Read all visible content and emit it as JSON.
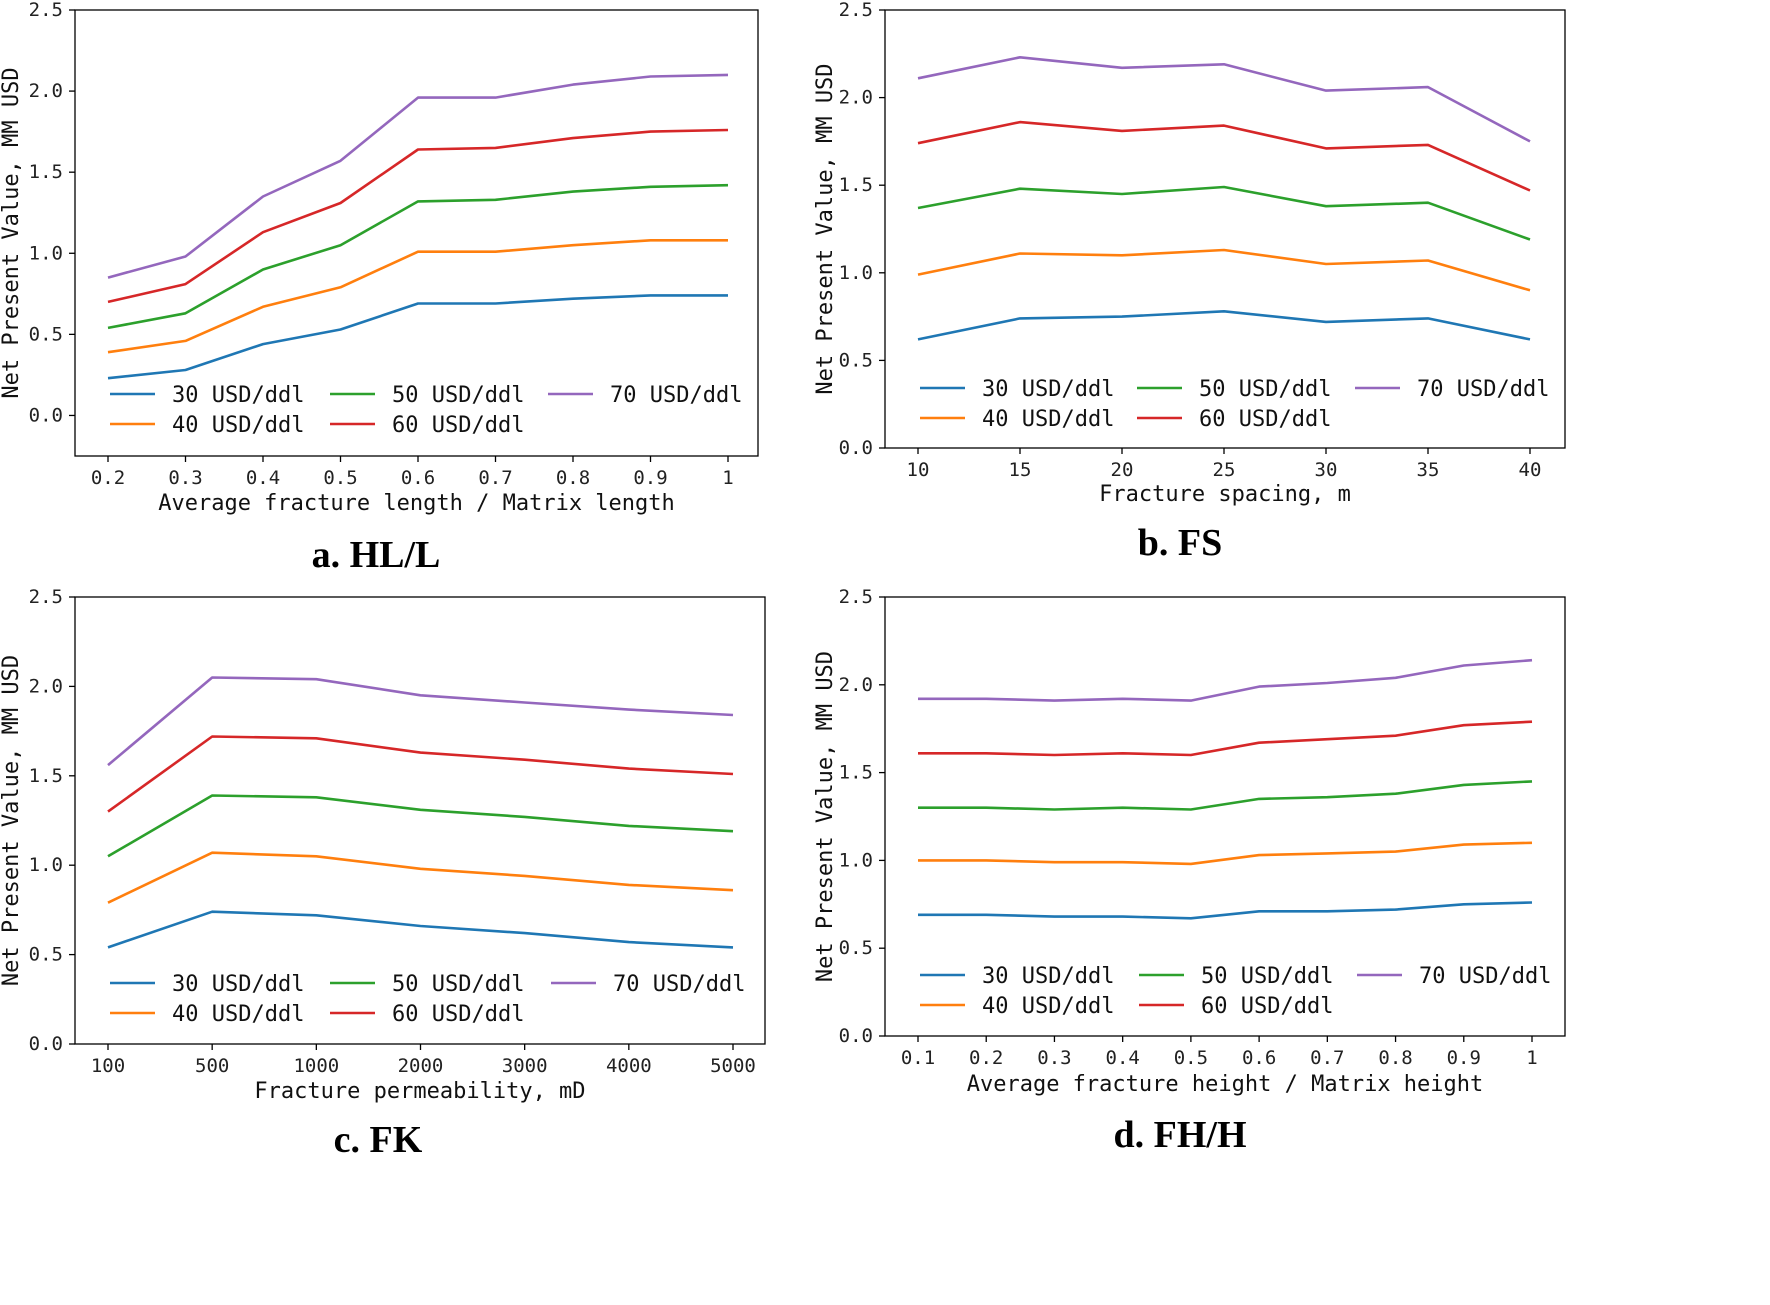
{
  "figure": {
    "series_colors": [
      "#1f77b4",
      "#ff7f0e",
      "#2ca02c",
      "#d62728",
      "#9467bd"
    ]
  },
  "chart_data": [
    {
      "id": "a",
      "type": "line",
      "caption": "a. HL/L",
      "xlabel": "Average fracture length / Matrix length",
      "ylabel": "Net Present Value, MM USD",
      "categories": [
        "0.2",
        "0.3",
        "0.4",
        "0.5",
        "0.6",
        "0.7",
        "0.8",
        "0.9",
        "1"
      ],
      "y_ticks": [
        "0.0",
        "0.5",
        "1.0",
        "1.5",
        "2.0",
        "2.5"
      ],
      "ylim": [
        -0.25,
        2.5
      ],
      "series": [
        {
          "name": "30 USD/ddl",
          "values": [
            0.23,
            0.28,
            0.44,
            0.53,
            0.69,
            0.69,
            0.72,
            0.74,
            0.74
          ]
        },
        {
          "name": "40 USD/ddl",
          "values": [
            0.39,
            0.46,
            0.67,
            0.79,
            1.01,
            1.01,
            1.05,
            1.08,
            1.08
          ]
        },
        {
          "name": "50 USD/ddl",
          "values": [
            0.54,
            0.63,
            0.9,
            1.05,
            1.32,
            1.33,
            1.38,
            1.41,
            1.42
          ]
        },
        {
          "name": "60 USD/ddl",
          "values": [
            0.7,
            0.81,
            1.13,
            1.31,
            1.64,
            1.65,
            1.71,
            1.75,
            1.76
          ]
        },
        {
          "name": "70 USD/ddl",
          "values": [
            0.85,
            0.98,
            1.35,
            1.57,
            1.96,
            1.96,
            2.04,
            2.09,
            2.1
          ]
        }
      ]
    },
    {
      "id": "b",
      "type": "line",
      "caption": "b. FS",
      "xlabel": "Fracture spacing, m",
      "ylabel": "Net Present Value, MM USD",
      "categories": [
        "10",
        "15",
        "20",
        "25",
        "30",
        "35",
        "40"
      ],
      "y_ticks": [
        "0.0",
        "0.5",
        "1.0",
        "1.5",
        "2.0",
        "2.5"
      ],
      "ylim": [
        0,
        2.5
      ],
      "series": [
        {
          "name": "30 USD/ddl",
          "values": [
            0.62,
            0.74,
            0.75,
            0.78,
            0.72,
            0.74,
            0.62
          ]
        },
        {
          "name": "40 USD/ddl",
          "values": [
            0.99,
            1.11,
            1.1,
            1.13,
            1.05,
            1.07,
            0.9
          ]
        },
        {
          "name": "50 USD/ddl",
          "values": [
            1.37,
            1.48,
            1.45,
            1.49,
            1.38,
            1.4,
            1.19
          ]
        },
        {
          "name": "60 USD/ddl",
          "values": [
            1.74,
            1.86,
            1.81,
            1.84,
            1.71,
            1.73,
            1.47
          ]
        },
        {
          "name": "70 USD/ddl",
          "values": [
            2.11,
            2.23,
            2.17,
            2.19,
            2.04,
            2.06,
            1.75
          ]
        }
      ]
    },
    {
      "id": "c",
      "type": "line",
      "caption": "c. FK",
      "xlabel": "Fracture permeability, mD",
      "ylabel": "Net Present Value, MM USD",
      "categories": [
        "100",
        "500",
        "1000",
        "2000",
        "3000",
        "4000",
        "5000"
      ],
      "y_ticks": [
        "0.0",
        "0.5",
        "1.0",
        "1.5",
        "2.0",
        "2.5"
      ],
      "ylim": [
        0,
        2.5
      ],
      "series": [
        {
          "name": "30 USD/ddl",
          "values": [
            0.54,
            0.74,
            0.72,
            0.66,
            0.62,
            0.57,
            0.54
          ]
        },
        {
          "name": "40 USD/ddl",
          "values": [
            0.79,
            1.07,
            1.05,
            0.98,
            0.94,
            0.89,
            0.86
          ]
        },
        {
          "name": "50 USD/ddl",
          "values": [
            1.05,
            1.39,
            1.38,
            1.31,
            1.27,
            1.22,
            1.19
          ]
        },
        {
          "name": "60 USD/ddl",
          "values": [
            1.3,
            1.72,
            1.71,
            1.63,
            1.59,
            1.54,
            1.51
          ]
        },
        {
          "name": "70 USD/ddl",
          "values": [
            1.56,
            2.05,
            2.04,
            1.95,
            1.91,
            1.87,
            1.84
          ]
        }
      ]
    },
    {
      "id": "d",
      "type": "line",
      "caption": "d. FH/H",
      "xlabel": "Average fracture height / Matrix height",
      "ylabel": "Net Present Value, MM USD",
      "categories": [
        "0.1",
        "0.2",
        "0.3",
        "0.4",
        "0.5",
        "0.6",
        "0.7",
        "0.8",
        "0.9",
        "1"
      ],
      "y_ticks": [
        "0.0",
        "0.5",
        "1.0",
        "1.5",
        "2.0",
        "2.5"
      ],
      "ylim": [
        0,
        2.5
      ],
      "series": [
        {
          "name": "30 USD/ddl",
          "values": [
            0.69,
            0.69,
            0.68,
            0.68,
            0.67,
            0.71,
            0.71,
            0.72,
            0.75,
            0.76
          ]
        },
        {
          "name": "40 USD/ddl",
          "values": [
            1.0,
            1.0,
            0.99,
            0.99,
            0.98,
            1.03,
            1.04,
            1.05,
            1.09,
            1.1
          ]
        },
        {
          "name": "50 USD/ddl",
          "values": [
            1.3,
            1.3,
            1.29,
            1.3,
            1.29,
            1.35,
            1.36,
            1.38,
            1.43,
            1.45
          ]
        },
        {
          "name": "60 USD/ddl",
          "values": [
            1.61,
            1.61,
            1.6,
            1.61,
            1.6,
            1.67,
            1.69,
            1.71,
            1.77,
            1.79
          ]
        },
        {
          "name": "70 USD/ddl",
          "values": [
            1.92,
            1.92,
            1.91,
            1.92,
            1.91,
            1.99,
            2.01,
            2.04,
            2.11,
            2.14
          ]
        }
      ]
    }
  ]
}
